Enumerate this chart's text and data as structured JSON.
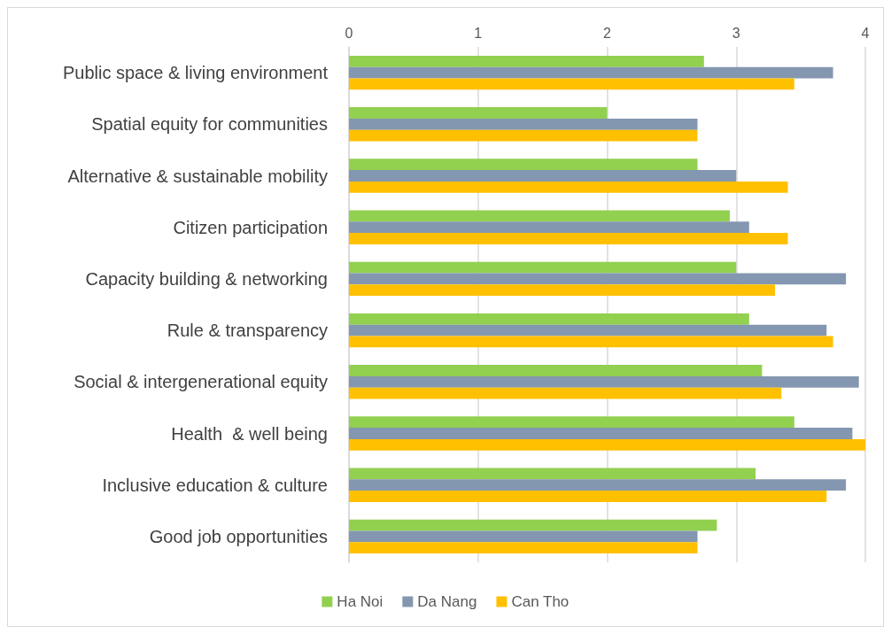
{
  "chart_data": {
    "type": "bar",
    "orientation": "horizontal",
    "categories": [
      "Public space & living environment",
      "Spatial equity for communities",
      "Alternative & sustainable mobility",
      "Citizen participation",
      "Capacity building & networking",
      "Rule & transparency",
      "Social & intergenerational equity",
      "Health  & well being",
      "Inclusive education & culture",
      "Good job opportunities"
    ],
    "series": [
      {
        "name": "Ha Noi",
        "color": "#92d050",
        "values": [
          2.75,
          2.0,
          2.7,
          2.95,
          3.0,
          3.1,
          3.2,
          3.45,
          3.15,
          2.85
        ]
      },
      {
        "name": "Da Nang",
        "color": "#8497b0",
        "values": [
          3.75,
          2.7,
          3.0,
          3.1,
          3.85,
          3.7,
          3.95,
          3.9,
          3.85,
          2.7
        ]
      },
      {
        "name": "Can Tho",
        "color": "#ffc000",
        "values": [
          3.45,
          2.7,
          3.4,
          3.4,
          3.3,
          3.75,
          3.35,
          4.0,
          3.7,
          2.7
        ]
      }
    ],
    "xlim": [
      0,
      4
    ],
    "xticks": [
      0,
      1,
      2,
      3,
      4
    ],
    "grid": "x",
    "legend": "bottom"
  }
}
